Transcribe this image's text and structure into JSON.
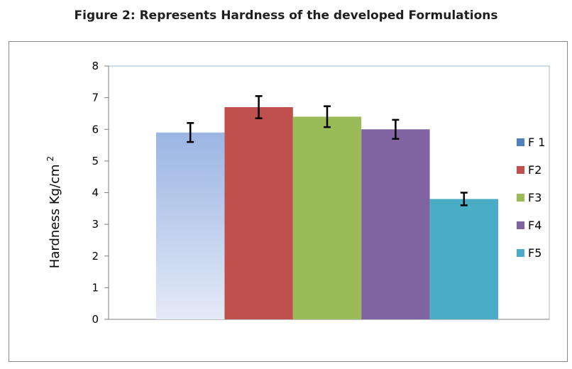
{
  "figure_title": "Figure 2: Represents Hardness of the developed Formulations",
  "chart_data": {
    "type": "bar",
    "title": "",
    "xlabel": "",
    "ylabel": "Hardness Kg/cm",
    "ylabel_superscript": "2",
    "ylim": [
      0,
      8
    ],
    "yticks": [
      "0",
      "1",
      "2",
      "3",
      "4",
      "5",
      "6",
      "7",
      "8"
    ],
    "grid": false,
    "legend_position": "right",
    "series": [
      {
        "name": "F 1",
        "value": 5.9,
        "error": 0.3,
        "color": "#4f81bd"
      },
      {
        "name": "F2",
        "value": 6.7,
        "error": 0.35,
        "color": "#c0504d"
      },
      {
        "name": "F3",
        "value": 6.4,
        "error": 0.33,
        "color": "#9bbb59"
      },
      {
        "name": "F4",
        "value": 6.0,
        "error": 0.3,
        "color": "#8064a2"
      },
      {
        "name": "F5",
        "value": 3.8,
        "error": 0.2,
        "color": "#4bacc6"
      }
    ]
  }
}
